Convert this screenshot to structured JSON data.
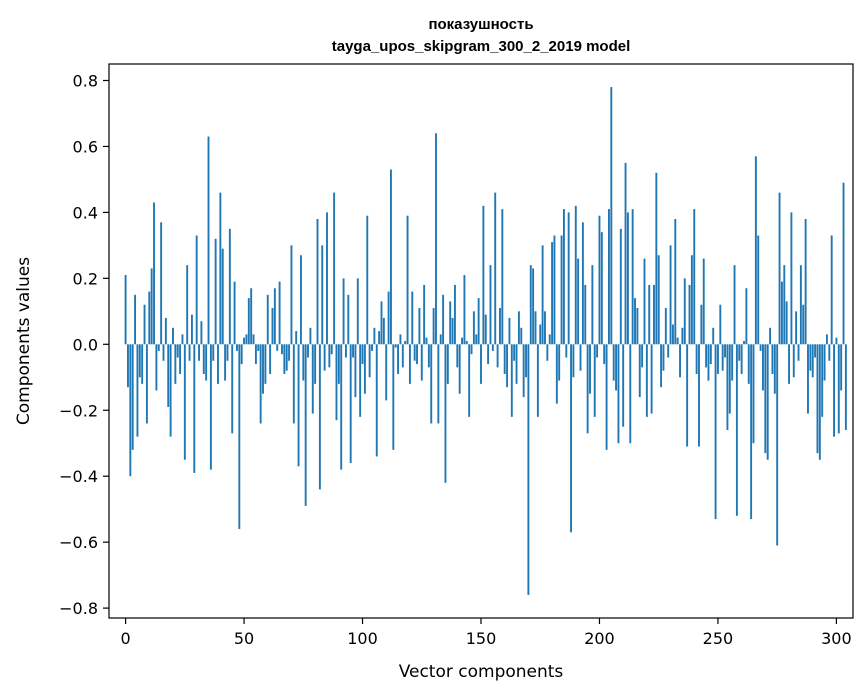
{
  "chart_data": {
    "type": "bar",
    "title": "показушность",
    "subtitle": "tayga_upos_skipgram_300_2_2019 model",
    "xlabel": "Vector components",
    "ylabel": "Components values",
    "xlim": [
      -7,
      307
    ],
    "ylim": [
      -0.83,
      0.85
    ],
    "x_ticks": [
      0,
      50,
      100,
      150,
      200,
      250,
      300
    ],
    "x_tick_labels": [
      "0",
      "50",
      "100",
      "150",
      "200",
      "250",
      "300"
    ],
    "y_ticks": [
      -0.8,
      -0.6,
      -0.4,
      -0.2,
      0.0,
      0.2,
      0.4,
      0.6,
      0.8
    ],
    "y_tick_labels": [
      "−0.8",
      "−0.6",
      "−0.4",
      "−0.2",
      "0.0",
      "0.2",
      "0.4",
      "0.6",
      "0.8"
    ],
    "grid": false,
    "bar_color": "#1f77b4",
    "series": [
      {
        "values": [
          0.21,
          -0.13,
          -0.4,
          -0.32,
          0.15,
          -0.28,
          -0.1,
          -0.12,
          0.12,
          -0.24,
          0.16,
          0.23,
          0.43,
          -0.14,
          -0.02,
          0.37,
          -0.05,
          0.08,
          -0.19,
          -0.28,
          0.05,
          -0.12,
          -0.04,
          -0.09,
          0.03,
          -0.35,
          0.24,
          -0.05,
          0.09,
          -0.39,
          0.33,
          -0.05,
          0.07,
          -0.09,
          -0.11,
          0.63,
          -0.38,
          -0.05,
          0.32,
          -0.12,
          0.46,
          0.29,
          -0.11,
          -0.05,
          0.35,
          -0.27,
          0.19,
          -0.02,
          -0.56,
          -0.06,
          0.02,
          0.03,
          0.14,
          0.17,
          0.03,
          -0.06,
          -0.02,
          -0.24,
          -0.15,
          -0.12,
          0.15,
          -0.09,
          0.11,
          0.17,
          -0.02,
          0.19,
          -0.03,
          -0.09,
          -0.08,
          -0.05,
          0.3,
          -0.24,
          0.04,
          -0.37,
          0.27,
          -0.11,
          -0.49,
          -0.04,
          0.05,
          -0.21,
          -0.12,
          0.38,
          -0.44,
          0.3,
          -0.08,
          0.4,
          -0.07,
          -0.03,
          0.46,
          -0.23,
          -0.12,
          -0.38,
          0.2,
          -0.04,
          0.15,
          -0.36,
          -0.04,
          -0.16,
          0.2,
          -0.22,
          -0.06,
          -0.15,
          0.39,
          -0.1,
          -0.02,
          0.05,
          -0.34,
          0.04,
          0.13,
          0.08,
          -0.17,
          0.16,
          0.53,
          -0.32,
          -0.01,
          -0.09,
          0.03,
          -0.07,
          0.01,
          0.39,
          -0.12,
          0.16,
          -0.05,
          -0.06,
          0.11,
          -0.11,
          0.18,
          0.02,
          -0.07,
          -0.24,
          0.11,
          0.64,
          -0.24,
          0.03,
          0.15,
          -0.42,
          -0.12,
          0.13,
          0.08,
          0.18,
          -0.07,
          -0.15,
          0.02,
          0.21,
          0.01,
          -0.22,
          -0.03,
          0.1,
          0.03,
          0.14,
          -0.12,
          0.42,
          0.09,
          -0.06,
          0.24,
          -0.02,
          0.46,
          -0.07,
          0.11,
          0.41,
          -0.09,
          -0.13,
          0.08,
          -0.22,
          -0.05,
          -0.12,
          0.1,
          0.05,
          -0.16,
          -0.1,
          -0.76,
          0.24,
          0.23,
          0.1,
          -0.22,
          0.06,
          0.3,
          0.1,
          -0.05,
          0.03,
          0.31,
          0.33,
          -0.18,
          -0.11,
          0.33,
          0.41,
          -0.04,
          0.4,
          -0.57,
          -0.1,
          0.42,
          0.26,
          -0.08,
          0.37,
          0.18,
          -0.27,
          -0.15,
          0.24,
          -0.22,
          -0.04,
          0.39,
          0.34,
          -0.06,
          -0.32,
          0.41,
          0.78,
          -0.11,
          -0.14,
          -0.3,
          0.35,
          -0.25,
          0.55,
          0.4,
          -0.3,
          0.41,
          0.14,
          0.11,
          -0.16,
          -0.07,
          0.26,
          -0.22,
          0.18,
          -0.21,
          0.18,
          0.52,
          0.27,
          -0.13,
          -0.08,
          0.11,
          -0.04,
          0.3,
          0.06,
          0.38,
          0.02,
          -0.1,
          0.05,
          0.2,
          -0.31,
          0.18,
          0.27,
          0.41,
          -0.09,
          -0.31,
          0.12,
          0.26,
          -0.07,
          -0.11,
          -0.06,
          0.05,
          -0.53,
          -0.09,
          0.12,
          -0.08,
          -0.04,
          -0.26,
          -0.21,
          -0.11,
          0.24,
          -0.52,
          -0.05,
          -0.09,
          0.01,
          0.17,
          -0.12,
          -0.53,
          -0.3,
          0.57,
          0.33,
          -0.02,
          -0.14,
          -0.33,
          -0.35,
          0.05,
          -0.09,
          -0.15,
          -0.61,
          0.46,
          0.19,
          0.24,
          0.13,
          -0.12,
          0.4,
          -0.1,
          0.1,
          -0.05,
          0.24,
          0.12,
          0.38,
          -0.21,
          -0.08,
          -0.1,
          -0.04,
          -0.33,
          -0.35,
          -0.22,
          -0.11,
          0.03,
          -0.05,
          0.33,
          -0.28,
          0.02,
          -0.27,
          -0.14,
          0.49,
          -0.26
        ]
      }
    ]
  }
}
